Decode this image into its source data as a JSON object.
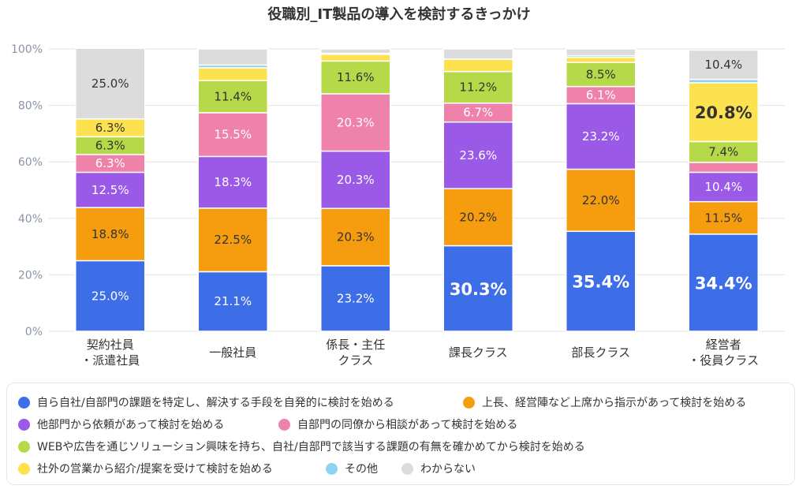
{
  "chart_data": {
    "type": "stacked-bar",
    "title": "役職別_IT製品の導入を検討するきっかけ",
    "ylim": [
      0,
      100
    ],
    "yticks": [
      "0%",
      "20%",
      "40%",
      "60%",
      "80%",
      "100%"
    ],
    "categories": [
      [
        "契約社員",
        "・派遣社員"
      ],
      [
        "一般社員"
      ],
      [
        "係長・主任",
        "クラス"
      ],
      [
        "課長クラス"
      ],
      [
        "部長クラス"
      ],
      [
        "経営者",
        "・役員クラス"
      ]
    ],
    "series": [
      {
        "name": "自ら自社/自部門の課題を特定し、解決する手段を自発的に検討を始める",
        "color": "#3d6ee8",
        "values": [
          25.0,
          21.1,
          23.2,
          30.3,
          35.4,
          34.4
        ]
      },
      {
        "name": "上長、経営陣など上席から指示があって検討を始める",
        "color": "#f59d0e",
        "values": [
          18.8,
          22.5,
          20.3,
          20.2,
          22.0,
          11.5
        ]
      },
      {
        "name": "他部門から依頼があって検討を始める",
        "color": "#9b59e8",
        "values": [
          12.5,
          18.3,
          20.3,
          23.6,
          23.2,
          10.4
        ]
      },
      {
        "name": "自部門の同僚から相談があって検討を始める",
        "color": "#ef82aa",
        "values": [
          6.3,
          15.5,
          20.3,
          6.7,
          6.1,
          3.5
        ]
      },
      {
        "name": "WEBや広告を通じソリューション興味を持ち、自社/自部門で該当する課題の有無を確かめてから検討を始める",
        "color": "#b6d94a",
        "values": [
          6.3,
          11.4,
          11.6,
          11.2,
          8.5,
          7.4
        ]
      },
      {
        "name": "社外の営業から紹介/提案を受けて検討を始める",
        "color": "#fde24f",
        "values": [
          6.3,
          4.5,
          2.4,
          4.4,
          1.8,
          20.8
        ]
      },
      {
        "name": "その他",
        "color": "#8fd3f2",
        "values": [
          0.0,
          1.0,
          0.3,
          0.0,
          0.6,
          1.2
        ]
      },
      {
        "name": "わからない",
        "color": "#dcdcdc",
        "values": [
          25.0,
          5.7,
          1.6,
          3.6,
          2.4,
          10.4
        ]
      }
    ],
    "data_labels": [
      [
        "25.0%",
        "18.8%",
        "12.5%",
        "6.3%",
        "6.3%",
        "6.3%",
        null,
        "25.0%"
      ],
      [
        "21.1%",
        "22.5%",
        "18.3%",
        "15.5%",
        "11.4%",
        null,
        null,
        null
      ],
      [
        "23.2%",
        "20.3%",
        "20.3%",
        "20.3%",
        "11.6%",
        null,
        null,
        null
      ],
      [
        "30.3%",
        "20.2%",
        "23.6%",
        "6.7%",
        "11.2%",
        null,
        null,
        null
      ],
      [
        "35.4%",
        "22.0%",
        "23.2%",
        "6.1%",
        "8.5%",
        null,
        null,
        null
      ],
      [
        "34.4%",
        "11.5%",
        "10.4%",
        null,
        "7.4%",
        "20.8%",
        null,
        "10.4%"
      ]
    ],
    "emphasized_labels": [
      [
        3,
        0
      ],
      [
        4,
        0
      ],
      [
        5,
        0
      ],
      [
        5,
        5
      ]
    ]
  }
}
